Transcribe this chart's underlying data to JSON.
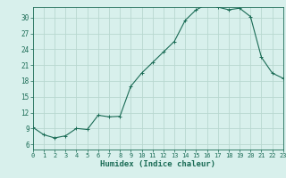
{
  "x": [
    0,
    1,
    2,
    3,
    4,
    5,
    6,
    7,
    8,
    9,
    10,
    11,
    12,
    13,
    14,
    15,
    16,
    17,
    18,
    19,
    20,
    21,
    22,
    23
  ],
  "y": [
    9.2,
    7.8,
    7.2,
    7.6,
    9.0,
    8.8,
    11.5,
    11.2,
    11.3,
    17.0,
    19.5,
    21.5,
    23.5,
    25.5,
    29.5,
    31.5,
    32.5,
    32.0,
    31.5,
    31.8,
    30.2,
    22.5,
    19.5,
    18.5
  ],
  "line_color": "#1a6b55",
  "marker_color": "#1a6b55",
  "bg_color": "#d8f0ec",
  "grid_color": "#b8d8d0",
  "xlabel": "Humidex (Indice chaleur)",
  "xlim": [
    0,
    23
  ],
  "ylim": [
    5.0,
    32.0
  ],
  "yticks": [
    6,
    9,
    12,
    15,
    18,
    21,
    24,
    27,
    30
  ],
  "xticks": [
    0,
    1,
    2,
    3,
    4,
    5,
    6,
    7,
    8,
    9,
    10,
    11,
    12,
    13,
    14,
    15,
    16,
    17,
    18,
    19,
    20,
    21,
    22,
    23
  ]
}
